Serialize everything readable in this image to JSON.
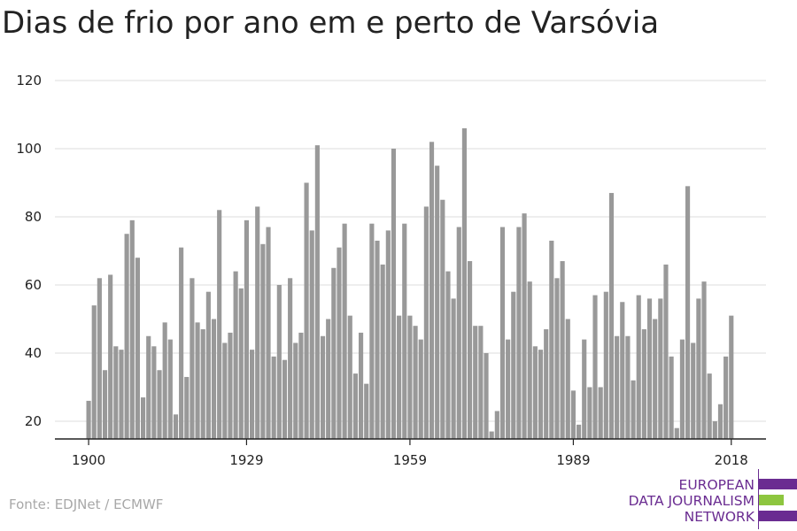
{
  "title": "Dias de frio por ano em e perto de Varsóvia",
  "source": "Fonte: EDJNet / ECMWF",
  "logo": {
    "lines": [
      "EUROPEAN",
      "DATA JOURNALISM",
      "NETWORK"
    ],
    "colors": {
      "purple": "#6a2c91",
      "green": "#8dc63f"
    }
  },
  "colors": {
    "bar": "#999999",
    "grid": "#dddddd",
    "axis": "#222222"
  },
  "chart_data": {
    "type": "bar",
    "title": "Dias de frio por ano em e perto de Varsóvia",
    "xlabel": "",
    "ylabel": "",
    "ylim": [
      15,
      120
    ],
    "yticks": [
      20,
      40,
      60,
      80,
      100,
      120
    ],
    "xticks": [
      1900,
      1929,
      1959,
      1989,
      2018
    ],
    "grid": true,
    "x_start": 1900,
    "values": [
      26,
      54,
      62,
      35,
      63,
      42,
      41,
      75,
      79,
      68,
      27,
      45,
      42,
      35,
      49,
      44,
      22,
      71,
      33,
      62,
      49,
      47,
      58,
      50,
      82,
      43,
      46,
      64,
      59,
      79,
      41,
      83,
      72,
      77,
      39,
      60,
      38,
      62,
      43,
      46,
      90,
      76,
      101,
      45,
      50,
      65,
      71,
      78,
      51,
      34,
      46,
      31,
      78,
      73,
      66,
      76,
      100,
      51,
      78,
      51,
      48,
      44,
      83,
      102,
      95,
      85,
      64,
      56,
      77,
      106,
      67,
      48,
      48,
      40,
      17,
      23,
      77,
      44,
      58,
      77,
      81,
      61,
      42,
      41,
      47,
      73,
      62,
      67,
      50,
      29,
      19,
      44,
      30,
      57,
      30,
      58,
      87,
      45,
      55,
      45,
      32,
      57,
      47,
      56,
      50,
      56,
      66,
      39,
      18,
      44,
      89,
      43,
      56,
      61,
      34,
      20,
      25,
      39,
      51
    ]
  }
}
